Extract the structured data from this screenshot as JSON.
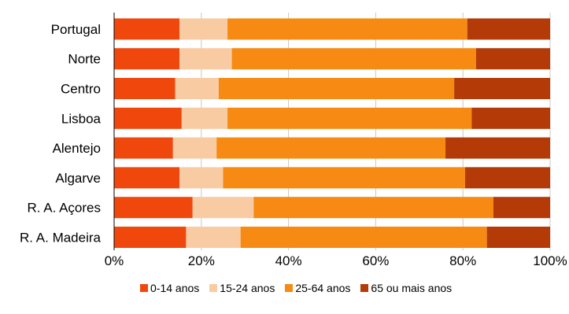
{
  "chart_data": {
    "type": "bar",
    "orientation": "horizontal",
    "stacked": true,
    "percent": true,
    "categories": [
      "Portugal",
      "Norte",
      "Centro",
      "Lisboa",
      "Alentejo",
      "Algarve",
      "R. A. Açores",
      "R. A. Madeira"
    ],
    "series": [
      {
        "name": "0-14 anos",
        "color": "#f0470d",
        "values": [
          15,
          15,
          14,
          15.5,
          13.5,
          15,
          18,
          16.5
        ]
      },
      {
        "name": "15-24 anos",
        "color": "#f9cba3",
        "values": [
          11,
          12,
          10,
          10.5,
          10,
          10,
          14,
          12.5
        ]
      },
      {
        "name": "25-64 anos",
        "color": "#f78a12",
        "values": [
          55,
          56,
          54,
          56,
          52.5,
          55.5,
          55,
          56.5
        ]
      },
      {
        "name": "65 ou mais anos",
        "color": "#b43a07",
        "values": [
          19,
          17,
          22,
          18,
          24,
          19.5,
          13,
          14.5
        ]
      }
    ],
    "xticks": [
      "0%",
      "20%",
      "40%",
      "60%",
      "80%",
      "100%"
    ],
    "xlim": [
      0,
      100
    ],
    "grid": true,
    "legend_position": "bottom"
  }
}
